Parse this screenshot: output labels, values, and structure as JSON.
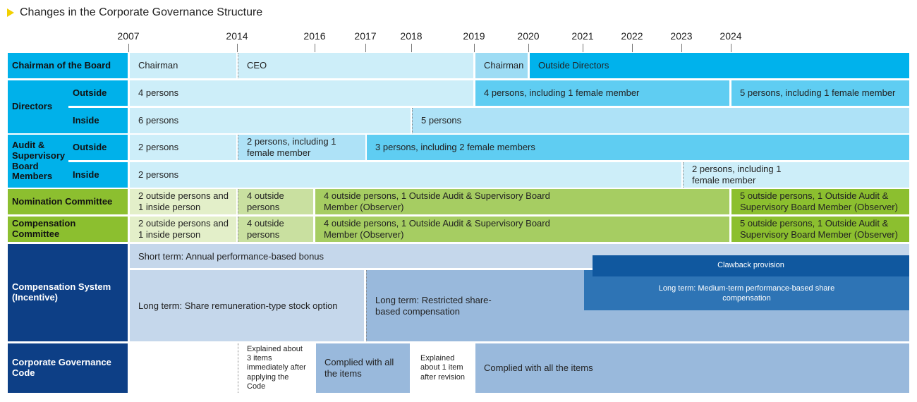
{
  "title": "Changes in the Corporate Governance Structure",
  "years": [
    "2007",
    "2014",
    "2016",
    "2017",
    "2018",
    "2019",
    "2020",
    "2021",
    "2022",
    "2023",
    "2024"
  ],
  "rows": {
    "chairman": {
      "label": "Chairman of the Board",
      "cells": [
        "Chairman",
        "CEO",
        "Chairman",
        "Outside Directors"
      ]
    },
    "directors": {
      "label": "Directors",
      "outside_label": "Outside",
      "inside_label": "Inside",
      "outside_cells": [
        "4 persons",
        "4 persons, including 1 female member",
        "5 persons, including 1 female member"
      ],
      "inside_cells": [
        "6 persons",
        "5 persons"
      ]
    },
    "audit": {
      "label": "Audit & Supervisory Board Members",
      "outside_label": "Outside",
      "inside_label": "Inside",
      "outside_cells": [
        "2 persons",
        "2 persons, including 1 female member",
        "3 persons, including 2 female members"
      ],
      "inside_cells": [
        "2 persons",
        "2 persons, including 1 female member"
      ]
    },
    "nomination": {
      "label": "Nomination Committee",
      "cells": [
        "2 outside persons and 1 inside person",
        "4 outside persons",
        "4 outside persons, 1 Outside Audit & Supervisory Board Member (Observer)",
        "5 outside persons, 1 Outside Audit & Supervisory Board Member (Observer)"
      ]
    },
    "compensation_committee": {
      "label": "Compensation Committee",
      "cells": [
        "2 outside persons and 1 inside person",
        "4 outside persons",
        "4 outside persons, 1 Outside Audit & Supervisory Board Member (Observer)",
        "5 outside persons, 1 Outside Audit & Supervisory Board Member (Observer)"
      ]
    },
    "compensation_system": {
      "label": "Compensation System (Incentive)",
      "short_term": "Short term: Annual performance-based bonus",
      "clawback": "Clawback provision",
      "long_term_1": "Long term: Share remuneration-type stock option",
      "long_term_2": "Long term: Restricted share-based compensation",
      "long_term_3": "Long term: Medium-term performance-based share compensation"
    },
    "code": {
      "label": "Corporate Governance Code",
      "cells": [
        "Explained about 3 items immediately after applying the Code",
        "Complied with all the items",
        "Explained about 1 item after revision",
        "Complied with all the items"
      ]
    }
  },
  "colors": {
    "label_cyan": "#00b1ea",
    "light_cyan": "#cdeef9",
    "mid_cyan": "#9ddcf4",
    "cyan_2019": "#5fcdf2",
    "bright_cyan": "#00b2ec",
    "green_light": "#e3efc9",
    "green_mid": "#c9e0a0",
    "green": "#a6cd62",
    "green_dark": "#8cbf2f",
    "navy": "#0d3f86",
    "comp_light": "#c5d7eb",
    "comp_mid": "#99b9dc",
    "comp_blue": "#2e74b5",
    "comp_dark": "#10589f"
  }
}
